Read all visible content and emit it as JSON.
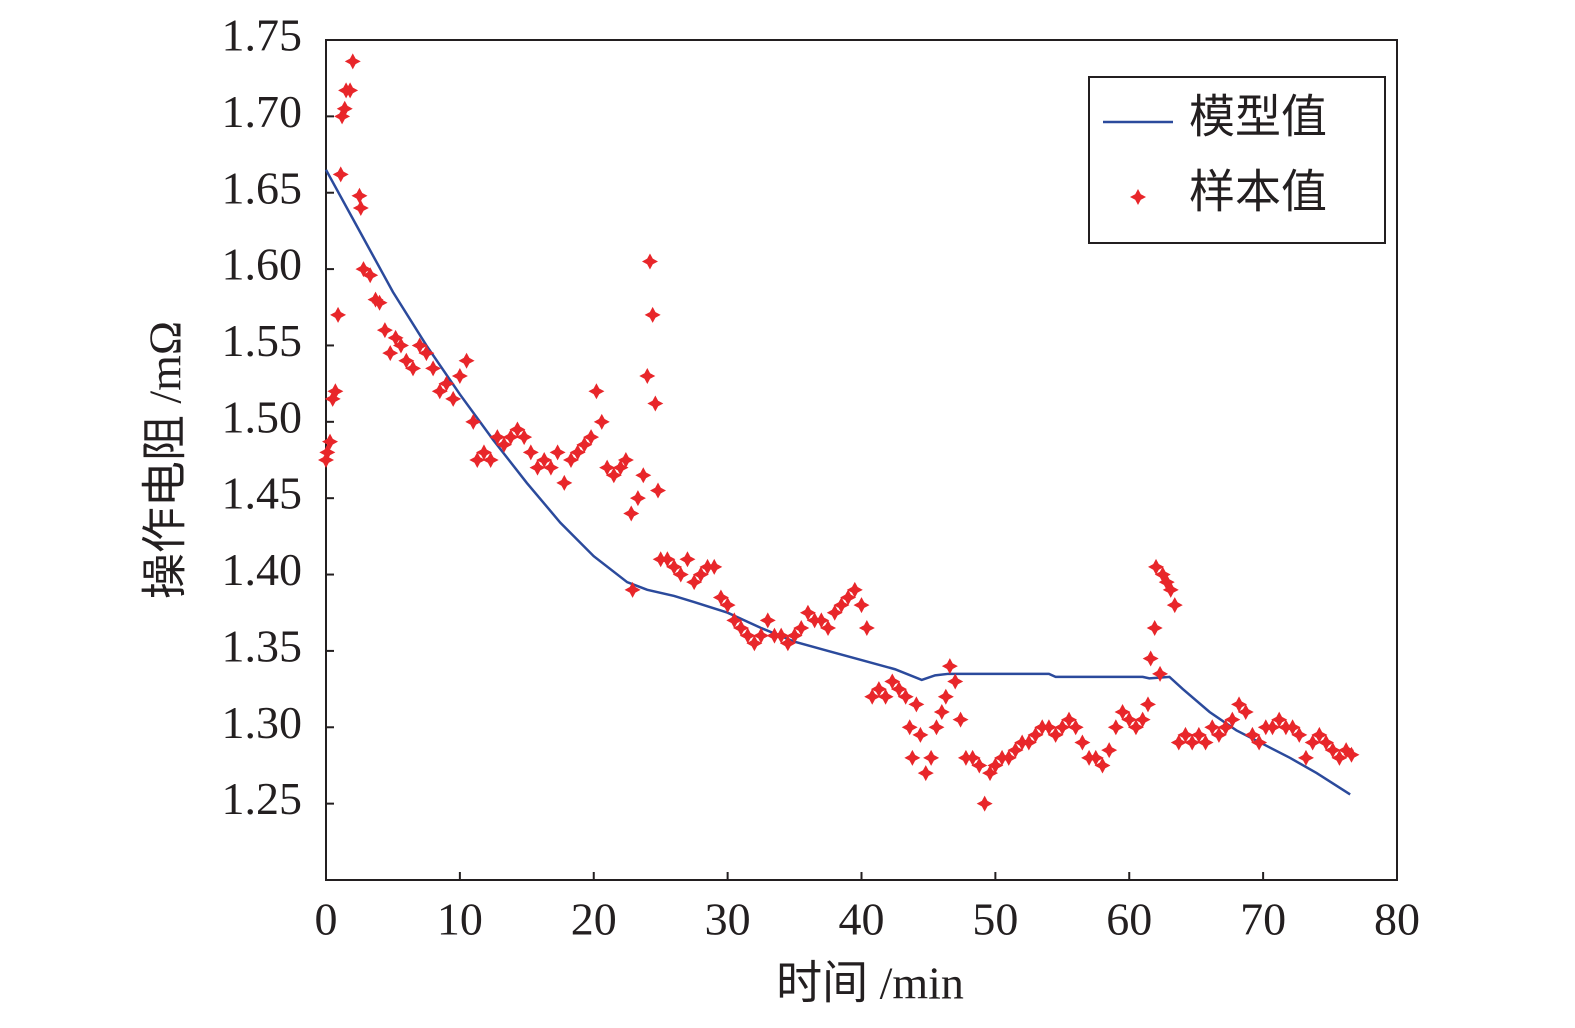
{
  "chart_data": {
    "type": "line",
    "xlabel": "时间 /min",
    "ylabel": "操作电阻 /mΩ",
    "xlim": [
      0,
      80
    ],
    "xticks": [
      0,
      10,
      20,
      30,
      40,
      50,
      60,
      70,
      80
    ],
    "ylim": [
      1.2,
      1.75
    ],
    "yticks": [
      1.25,
      {
        "value": 1.3,
        "label": "1.30"
      },
      1.35,
      {
        "value": 1.4,
        "label": "1.40"
      },
      1.45,
      {
        "value": 1.5,
        "label": "1.50"
      },
      1.55,
      {
        "value": 1.6,
        "label": "1.60"
      },
      1.65,
      {
        "value": 1.7,
        "label": "1.70"
      },
      1.75
    ],
    "legend": "upper right",
    "series": [
      {
        "name": "模型值",
        "type": "line",
        "color": "#2b4a9c",
        "x": [
          0,
          2.5,
          5,
          7.5,
          10,
          12.5,
          15,
          17.5,
          20,
          22.5,
          24,
          26,
          27.5,
          30,
          32.5,
          35,
          37.5,
          40,
          42.5,
          44.5,
          45.5,
          46.5,
          54,
          54.5,
          61,
          61.5,
          63,
          64,
          66,
          68,
          70,
          72,
          74,
          76.5
        ],
        "values": [
          1.665,
          1.625,
          1.585,
          1.55,
          1.518,
          1.488,
          1.46,
          1.434,
          1.412,
          1.395,
          1.39,
          1.386,
          1.382,
          1.375,
          1.365,
          1.356,
          1.35,
          1.344,
          1.338,
          1.331,
          1.334,
          1.335,
          1.335,
          1.333,
          1.333,
          1.332,
          1.333,
          1.325,
          1.31,
          1.298,
          1.289,
          1.28,
          1.27,
          1.256
        ]
      },
      {
        "name": "样本值",
        "type": "scatter",
        "color": "#e8262a",
        "x": [
          0,
          0.1,
          0.3,
          0.5,
          0.7,
          0.9,
          1.1,
          1.2,
          1.4,
          1.5,
          1.8,
          2,
          2.5,
          2.6,
          2.8,
          3.3,
          3.7,
          4,
          4.4,
          4.8,
          5.2,
          5.6,
          6,
          6.5,
          7,
          7.5,
          8,
          8.5,
          9,
          9.5,
          10,
          10.5,
          11,
          11.3,
          11.8,
          12.3,
          12.8,
          13.3,
          13.8,
          14.3,
          14.8,
          15.3,
          15.8,
          16.3,
          16.8,
          17.3,
          17.8,
          18.3,
          18.8,
          19.3,
          19.8,
          20.2,
          20.6,
          21,
          21.5,
          22,
          22.4,
          22.8,
          22.9,
          23.3,
          23.7,
          24,
          24.2,
          24.4,
          24.6,
          24.8,
          25,
          25.5,
          26,
          26.5,
          27,
          27.5,
          28,
          28.5,
          29,
          29.5,
          30,
          30.5,
          31,
          31.5,
          32,
          32.5,
          33,
          33.5,
          34,
          34.5,
          35,
          35.5,
          36,
          36.5,
          37,
          37.5,
          38,
          38.5,
          39,
          39.5,
          40,
          40.4,
          40.8,
          41.3,
          41.8,
          42.3,
          42.8,
          43.3,
          43.6,
          43.8,
          44.1,
          44.4,
          44.8,
          45.2,
          45.6,
          46,
          46.3,
          46.6,
          47,
          47.4,
          47.8,
          48.3,
          48.8,
          49.2,
          49.6,
          50,
          50.5,
          51,
          51.5,
          52,
          52.5,
          53,
          53.5,
          54,
          54.5,
          55,
          55.5,
          56,
          56.5,
          57,
          57.5,
          58,
          58.5,
          59,
          59.5,
          60,
          60.5,
          61,
          61.4,
          61.6,
          61.9,
          62,
          62.3,
          62.5,
          62.8,
          63.1,
          63.4,
          63.7,
          64.2,
          64.7,
          65.2,
          65.7,
          66.2,
          66.7,
          67.2,
          67.7,
          68.2,
          68.7,
          69.2,
          69.7,
          70.2,
          70.7,
          71.2,
          71.7,
          72.2,
          72.7,
          73.2,
          73.7,
          74.2,
          74.7,
          75.2,
          75.7,
          76.2,
          76.6
        ],
        "values": [
          1.475,
          1.48,
          1.487,
          1.515,
          1.52,
          1.57,
          1.662,
          1.7,
          1.705,
          1.717,
          1.717,
          1.736,
          1.648,
          1.64,
          1.6,
          1.596,
          1.58,
          1.578,
          1.56,
          1.545,
          1.555,
          1.55,
          1.54,
          1.535,
          1.55,
          1.545,
          1.535,
          1.52,
          1.525,
          1.515,
          1.53,
          1.54,
          1.5,
          1.475,
          1.48,
          1.475,
          1.49,
          1.485,
          1.49,
          1.495,
          1.49,
          1.48,
          1.47,
          1.475,
          1.47,
          1.48,
          1.46,
          1.475,
          1.48,
          1.485,
          1.49,
          1.52,
          1.5,
          1.47,
          1.465,
          1.47,
          1.475,
          1.44,
          1.39,
          1.45,
          1.465,
          1.53,
          1.605,
          1.57,
          1.512,
          1.455,
          1.41,
          1.41,
          1.405,
          1.4,
          1.41,
          1.395,
          1.4,
          1.405,
          1.405,
          1.385,
          1.38,
          1.37,
          1.365,
          1.36,
          1.355,
          1.36,
          1.37,
          1.36,
          1.36,
          1.355,
          1.36,
          1.365,
          1.375,
          1.37,
          1.37,
          1.365,
          1.375,
          1.38,
          1.385,
          1.39,
          1.38,
          1.365,
          1.32,
          1.325,
          1.32,
          1.33,
          1.325,
          1.32,
          1.3,
          1.28,
          1.315,
          1.295,
          1.27,
          1.28,
          1.3,
          1.31,
          1.32,
          1.34,
          1.33,
          1.305,
          1.28,
          1.28,
          1.275,
          1.25,
          1.27,
          1.275,
          1.28,
          1.28,
          1.285,
          1.29,
          1.29,
          1.295,
          1.3,
          1.3,
          1.295,
          1.3,
          1.305,
          1.3,
          1.29,
          1.28,
          1.28,
          1.275,
          1.285,
          1.3,
          1.31,
          1.305,
          1.3,
          1.305,
          1.315,
          1.345,
          1.365,
          1.405,
          1.335,
          1.4,
          1.395,
          1.39,
          1.38,
          1.29,
          1.295,
          1.29,
          1.295,
          1.29,
          1.3,
          1.295,
          1.3,
          1.305,
          1.315,
          1.31,
          1.295,
          1.29,
          1.3,
          1.3,
          1.305,
          1.3,
          1.3,
          1.295,
          1.28,
          1.29,
          1.295,
          1.29,
          1.285,
          1.28,
          1.285,
          1.282
        ]
      }
    ]
  }
}
